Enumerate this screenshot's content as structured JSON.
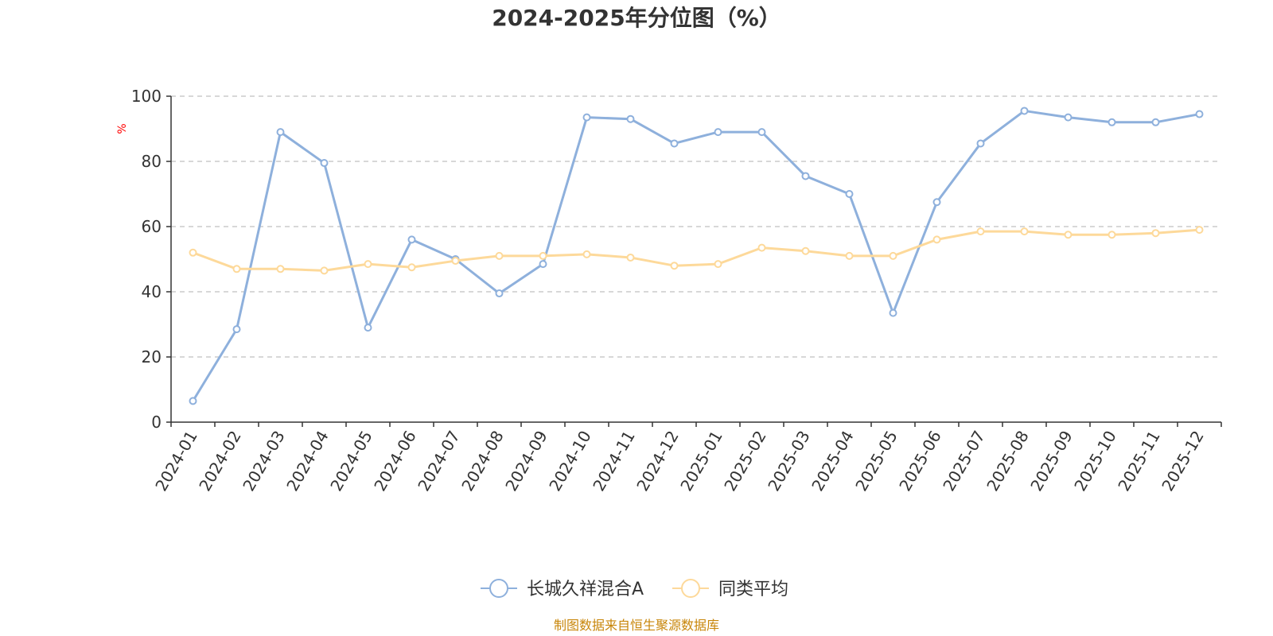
{
  "chart_data": {
    "type": "line",
    "title": "2024-2025年分位图（%）",
    "ylabel": "%",
    "xlabel": "",
    "ylim": [
      0,
      100
    ],
    "yticks": [
      0,
      20,
      40,
      60,
      80,
      100
    ],
    "grid": true,
    "legend_position": "bottom",
    "categories": [
      "2024-01",
      "2024-02",
      "2024-03",
      "2024-04",
      "2024-05",
      "2024-06",
      "2024-07",
      "2024-08",
      "2024-09",
      "2024-10",
      "2024-11",
      "2024-12",
      "2025-01",
      "2025-02",
      "2025-03",
      "2025-04",
      "2025-05",
      "2025-06",
      "2025-07",
      "2025-08",
      "2025-09",
      "2025-10",
      "2025-11",
      "2025-12"
    ],
    "series": [
      {
        "name": "长城久祥混合A",
        "color": "#8eb0dc",
        "values": [
          6.5,
          28.5,
          89.0,
          79.5,
          29.0,
          56.0,
          50.0,
          39.5,
          48.5,
          93.5,
          93.0,
          85.5,
          89.0,
          89.0,
          75.5,
          70.0,
          33.5,
          67.5,
          85.5,
          95.5,
          93.5,
          92.0,
          92.0,
          94.5
        ]
      },
      {
        "name": "同类平均",
        "color": "#fdd99a",
        "values": [
          52.0,
          47.0,
          47.0,
          46.5,
          48.5,
          47.5,
          49.5,
          51.0,
          51.0,
          51.5,
          50.5,
          48.0,
          48.5,
          53.5,
          52.5,
          51.0,
          51.0,
          56.0,
          58.5,
          58.5,
          57.5,
          57.5,
          58.0,
          59.0
        ]
      }
    ]
  },
  "source_text": "制图数据来自恒生聚源数据库",
  "colors": {
    "axis": "#333333",
    "grid": "#cccccc",
    "source": "#c8860a",
    "ylabel": "#ff0000"
  }
}
